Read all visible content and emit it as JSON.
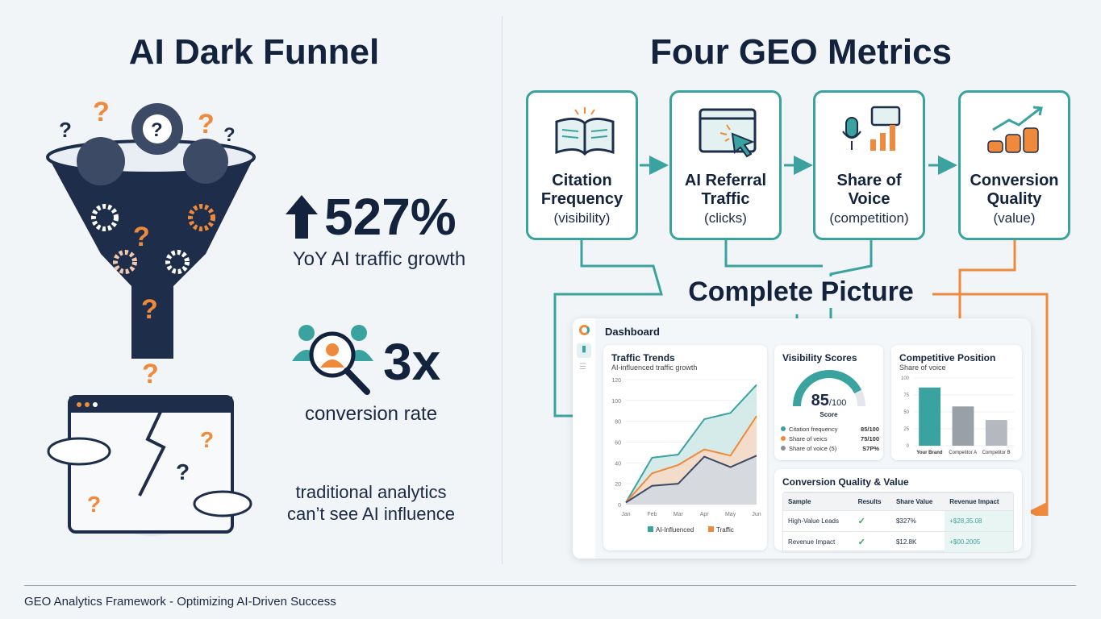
{
  "left": {
    "title": "AI Dark Funnel",
    "stat1": {
      "value": "527%",
      "label": "YoY AI traffic growth",
      "icon": "arrow-up-icon"
    },
    "stat2": {
      "value": "3x",
      "label": "conversion rate",
      "icon": "users-search-icon"
    },
    "note_line1": "traditional analytics",
    "note_line2": "can’t see AI influence"
  },
  "right": {
    "title": "Four GEO Metrics",
    "metrics": [
      {
        "name": "Citation Frequency",
        "sub": "(visibility)",
        "icon": "open-book-icon"
      },
      {
        "name": "AI Referral Traffic",
        "sub": "(clicks)",
        "icon": "browser-cursor-icon"
      },
      {
        "name": "Share of Voice",
        "sub": "(competition)",
        "icon": "microphone-chart-icon"
      },
      {
        "name": "Conversion Quality",
        "sub": "(value)",
        "icon": "coins-growth-icon"
      }
    ],
    "complete": "Complete Picture"
  },
  "dashboard": {
    "title": "Dashboard",
    "traffic": {
      "title": "Traffic Trends",
      "subtitle": "AI-influenced traffic growth"
    },
    "visibility": {
      "title": "Visibility Scores",
      "score": "85",
      "out_of": "/100",
      "score_label": "Score",
      "score_fraction": 0.85,
      "rows": [
        {
          "label": "Citation frequency",
          "value": "85/100",
          "color": "#3aa3a0"
        },
        {
          "label": "Share of veics",
          "value": "75/100",
          "color": "#ef8a3c"
        },
        {
          "label": "Share of voice (5)",
          "value": "S7P%",
          "color": "#8a9099"
        }
      ]
    },
    "competitive": {
      "title": "Competitive Position",
      "subtitle": "Share of voice"
    },
    "conversion": {
      "title": "Conversion Quality & Value",
      "headers": [
        "Sample",
        "Results",
        "Share Value",
        "Revenue Impact"
      ],
      "rows": [
        [
          "High-Value Leads",
          "✓",
          "$327%",
          "+$28,35.08"
        ],
        [
          "Revenue Impact",
          "✓",
          "$12.8K",
          "+$00.2005"
        ]
      ]
    }
  },
  "chart_data": [
    {
      "type": "area",
      "title": "Traffic Trends",
      "subtitle": "AI-influenced traffic growth",
      "categories": [
        "Jan",
        "Feb",
        "Mar",
        "Apr",
        "May",
        "Jun"
      ],
      "ylim": [
        0,
        120
      ],
      "yticks": [
        0,
        20,
        40,
        60,
        80,
        100,
        120
      ],
      "series": [
        {
          "name": "AI-Influenced",
          "values": [
            2,
            45,
            48,
            82,
            88,
            115
          ],
          "color": "#3aa3a0"
        },
        {
          "name": "Traffic",
          "values": [
            2,
            30,
            38,
            53,
            47,
            85
          ],
          "color": "#ef8a3c"
        },
        {
          "values": [
            2,
            18,
            20,
            46,
            36,
            47
          ],
          "color": "#3d4a66"
        }
      ],
      "legend": "bottom",
      "grid": true
    },
    {
      "type": "bar",
      "title": "Competitive Position",
      "subtitle": "Share of voice",
      "categories": [
        "Your Brand",
        "Competitor A",
        "Competitor B"
      ],
      "values": [
        86,
        58,
        38
      ],
      "ylim": [
        0,
        100
      ],
      "yticks": [
        0,
        25,
        50,
        75,
        100
      ],
      "colors": [
        "#3aa3a0",
        "#9aa0a8",
        "#b5b9bf"
      ]
    }
  ],
  "footer": "GEO Analytics Framework - Optimizing AI-Driven Success",
  "colors": {
    "teal": "#3aa3a0",
    "orange": "#ef8a3c",
    "navy": "#14233d"
  }
}
